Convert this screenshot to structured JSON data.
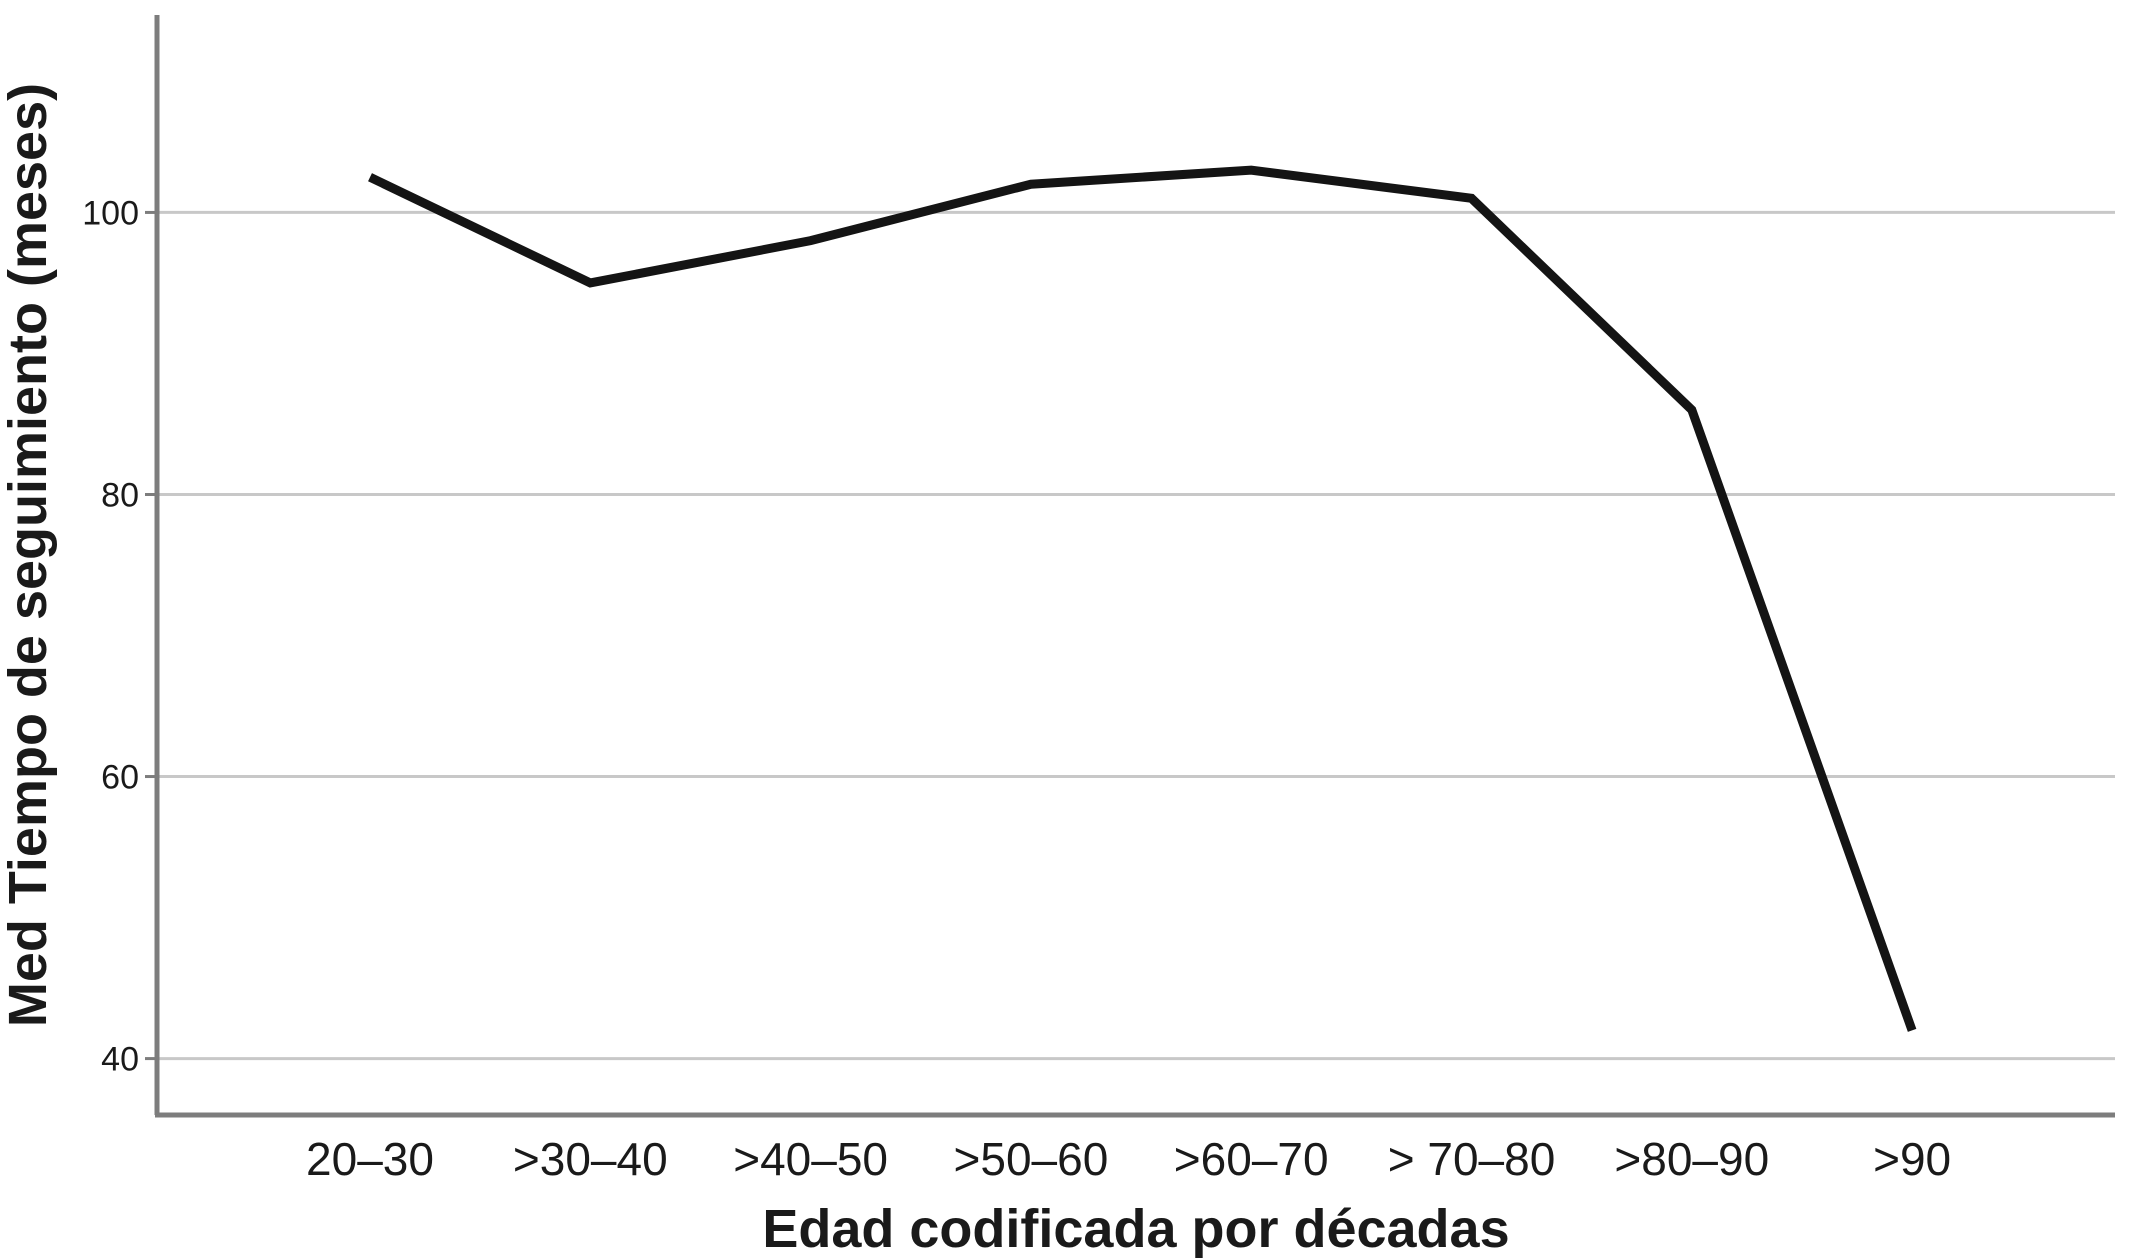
{
  "chart_data": {
    "type": "line",
    "title": "",
    "xlabel": "Edad codificada por décadas",
    "ylabel": "Med Tiempo de seguimiento (meses)",
    "categories": [
      "20–30",
      ">30–40",
      ">40–50",
      ">50–60",
      ">60–70",
      "> 70–80",
      ">80–90",
      ">90"
    ],
    "series": [
      {
        "name": "Med Tiempo de seguimiento (meses)",
        "values": [
          102.5,
          95,
          98,
          102,
          103,
          101,
          86,
          42
        ]
      }
    ],
    "y_ticks": [
      40,
      60,
      80,
      100
    ],
    "ylim": [
      36,
      114
    ],
    "grid": "horizontal-only",
    "legend": "none",
    "colors": {
      "line": "#141414",
      "gridline": "#c8c8c8",
      "axis": "#7d7d7d",
      "text": "#1a1a1a",
      "background": "#ffffff"
    }
  }
}
